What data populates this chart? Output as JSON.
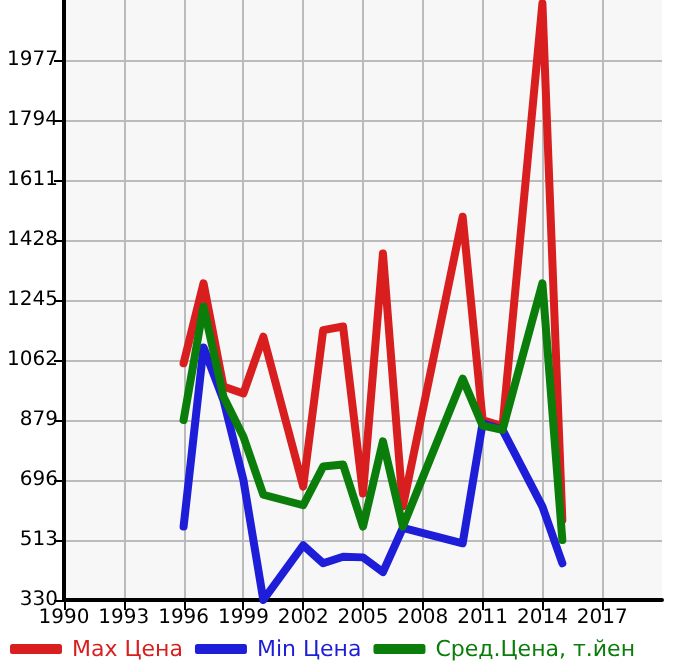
{
  "chart_data": {
    "type": "line",
    "series": [
      {
        "name": "Max Цена",
        "color": "#d81e1e",
        "x": [
          1996,
          1997,
          1998,
          1999,
          2000,
          2002,
          2003,
          2004,
          2005,
          2006,
          2007,
          2010,
          2011,
          2012,
          2014,
          2015
        ],
        "values": [
          1052,
          1296,
          981,
          960,
          1133,
          676,
          1153,
          1164,
          655,
          1387,
          615,
          1499,
          879,
          860,
          2150,
          574
        ]
      },
      {
        "name": "Min Цена",
        "color": "#1e1ed8",
        "x": [
          1996,
          1997,
          1998,
          1999,
          2000,
          2002,
          2003,
          2004,
          2005,
          2006,
          2007,
          2010,
          2011,
          2012,
          2014,
          2015
        ],
        "values": [
          554,
          1100,
          940,
          696,
          330,
          497,
          442,
          462,
          460,
          415,
          550,
          503,
          869,
          849,
          615,
          442
        ]
      },
      {
        "name": "Сред.Цена, т.йен",
        "color": "#0a7d0a",
        "x": [
          1996,
          1997,
          1998,
          1999,
          2000,
          2002,
          2003,
          2004,
          2005,
          2006,
          2007,
          2010,
          2011,
          2012,
          2014,
          2015
        ],
        "values": [
          879,
          1225,
          950,
          828,
          651,
          619,
          737,
          743,
          554,
          814,
          554,
          1005,
          862,
          849,
          1296,
          513
        ]
      }
    ],
    "xlim": [
      1990,
      2020
    ],
    "xticks": [
      1990,
      1993,
      1996,
      1999,
      2002,
      2005,
      2008,
      2011,
      2014,
      2017
    ],
    "ylim": [
      330,
      2160
    ],
    "yticks": [
      330,
      513,
      696,
      879,
      1062,
      1245,
      1428,
      1611,
      1794,
      1977
    ],
    "grid": true,
    "legend": "bottom",
    "marker": "none",
    "line_style": "solid"
  }
}
